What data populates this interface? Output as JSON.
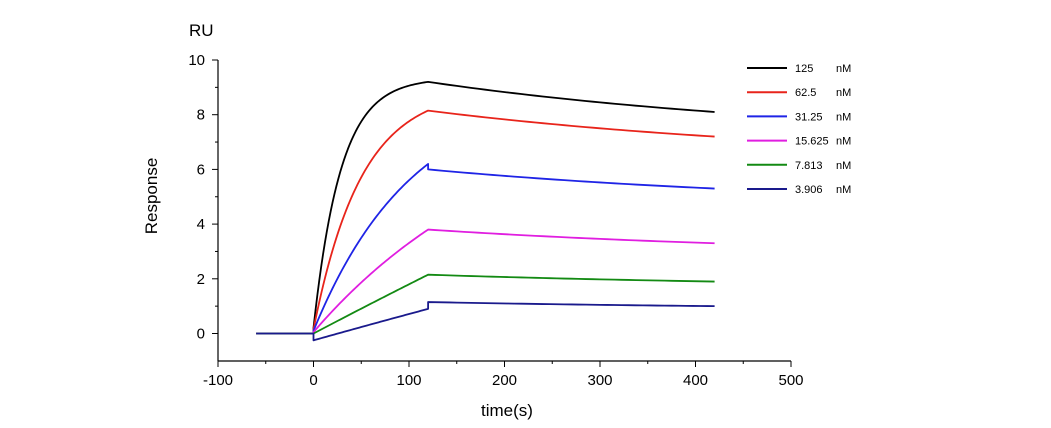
{
  "chart_data": {
    "type": "line",
    "title": "",
    "xlabel": "time(s)",
    "ylabel": "Response",
    "y_unit": "RU",
    "xlim": [
      -100,
      500
    ],
    "ylim": [
      -1,
      10
    ],
    "x_ticks": [
      "-100",
      "0",
      "100",
      "200",
      "300",
      "400",
      "500"
    ],
    "y_ticks": [
      "0",
      "2",
      "4",
      "6",
      "8",
      "10"
    ],
    "grid": false,
    "legend_position": "top-right",
    "baseline": {
      "x_start": -60,
      "x_end": 0,
      "y": 0
    },
    "association_phase": {
      "t_start": 0,
      "t_end": 120
    },
    "dissociation_phase": {
      "t_start": 120,
      "t_end": 420
    },
    "series": [
      {
        "name": "125",
        "unit": "nM",
        "color": "#000000",
        "start_y": 0.2,
        "peak_y": 9.2,
        "end_y": 8.1,
        "rise_shape": "fast"
      },
      {
        "name": "62.5",
        "unit": "nM",
        "color": "#e8241b",
        "start_y": 0.15,
        "peak_y": 8.15,
        "end_y": 7.2,
        "rise_shape": "medium"
      },
      {
        "name": "31.25",
        "unit": "nM",
        "color": "#1f24e6",
        "start_y": 0.1,
        "peak_y": 6.2,
        "dissoc_start_y": 6.0,
        "end_y": 5.3,
        "rise_shape": "slow"
      },
      {
        "name": "15.625",
        "unit": "nM",
        "color": "#e01ee0",
        "start_y": 0.05,
        "peak_y": 3.8,
        "end_y": 3.3,
        "rise_shape": "near-linear"
      },
      {
        "name": "7.813",
        "unit": "nM",
        "color": "#138a13",
        "start_y": 0.0,
        "peak_y": 2.15,
        "end_y": 1.9,
        "rise_shape": "linear"
      },
      {
        "name": "3.906",
        "unit": "nM",
        "color": "#1a1a8c",
        "start_y": -0.25,
        "peak_y": 0.9,
        "dissoc_start_y": 1.15,
        "end_y": 1.0,
        "rise_shape": "linear"
      }
    ]
  }
}
